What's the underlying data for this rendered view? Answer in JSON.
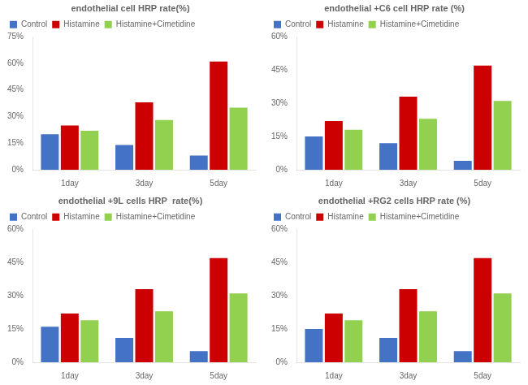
{
  "chart_data": [
    {
      "type": "bar",
      "title": "endothelial cell HRP rate(%)",
      "categories": [
        "1day",
        "3day",
        "5day"
      ],
      "series": [
        {
          "name": "Control",
          "color": "#4472c4",
          "values": [
            20,
            14,
            8
          ]
        },
        {
          "name": "Histamine",
          "color": "#cc0000",
          "values": [
            25,
            38,
            61
          ]
        },
        {
          "name": "Histamine+Cimetidine",
          "color": "#92d050",
          "values": [
            22,
            28,
            35
          ]
        }
      ],
      "ylim": [
        0,
        75
      ],
      "yticks": [
        {
          "value": 0,
          "label": "0%"
        },
        {
          "value": 15,
          "label": "15%"
        },
        {
          "value": 30,
          "label": "30%"
        },
        {
          "value": 45,
          "label": "45%"
        },
        {
          "value": 60,
          "label": "60%"
        },
        {
          "value": 75,
          "label": "75%"
        }
      ],
      "grid": false,
      "legend": "upper left"
    },
    {
      "type": "bar",
      "title": "endothelial +C6 cell HRP rate (%)",
      "categories": [
        "1day",
        "3day",
        "5day"
      ],
      "series": [
        {
          "name": "Control",
          "color": "#4472c4",
          "values": [
            15,
            12,
            4
          ]
        },
        {
          "name": "Histamine",
          "color": "#cc0000",
          "values": [
            22,
            33,
            47
          ]
        },
        {
          "name": "Histamine+Cimetidine",
          "color": "#92d050",
          "values": [
            18,
            23,
            31
          ]
        }
      ],
      "ylim": [
        0,
        60
      ],
      "yticks": [
        {
          "value": 0,
          "label": "0%"
        },
        {
          "value": 15,
          "label": "15%"
        },
        {
          "value": 30,
          "label": "30%"
        },
        {
          "value": 45,
          "label": "45%"
        },
        {
          "value": 60,
          "label": "60%"
        }
      ],
      "grid": false,
      "legend": "upper left"
    },
    {
      "type": "bar",
      "title": "endothelial +9L cells HRP  rate(%)",
      "categories": [
        "1day",
        "3day",
        "5day"
      ],
      "series": [
        {
          "name": "Control",
          "color": "#4472c4",
          "values": [
            16,
            11,
            5
          ]
        },
        {
          "name": "Histamine",
          "color": "#cc0000",
          "values": [
            22,
            33,
            47
          ]
        },
        {
          "name": "Histamine+Cimetidine",
          "color": "#92d050",
          "values": [
            19,
            23,
            31
          ]
        }
      ],
      "ylim": [
        0,
        60
      ],
      "yticks": [
        {
          "value": 0,
          "label": "0%"
        },
        {
          "value": 15,
          "label": "15%"
        },
        {
          "value": 30,
          "label": "30%"
        },
        {
          "value": 45,
          "label": "45%"
        },
        {
          "value": 60,
          "label": "60%"
        }
      ],
      "grid": false,
      "legend": "upper left"
    },
    {
      "type": "bar",
      "title": "endothelial +RG2 cells HRP rate (%)",
      "categories": [
        "1day",
        "3day",
        "5day"
      ],
      "series": [
        {
          "name": "Control",
          "color": "#4472c4",
          "values": [
            15,
            11,
            5
          ]
        },
        {
          "name": "Histamine",
          "color": "#cc0000",
          "values": [
            22,
            33,
            47
          ]
        },
        {
          "name": "Histamine+Cimetidine",
          "color": "#92d050",
          "values": [
            19,
            23,
            31
          ]
        }
      ],
      "ylim": [
        0,
        60
      ],
      "yticks": [
        {
          "value": 0,
          "label": "0%"
        },
        {
          "value": 15,
          "label": "15%"
        },
        {
          "value": 30,
          "label": "30%"
        },
        {
          "value": 45,
          "label": "45%"
        },
        {
          "value": 60,
          "label": "60%"
        }
      ],
      "grid": false,
      "legend": "upper left"
    }
  ]
}
